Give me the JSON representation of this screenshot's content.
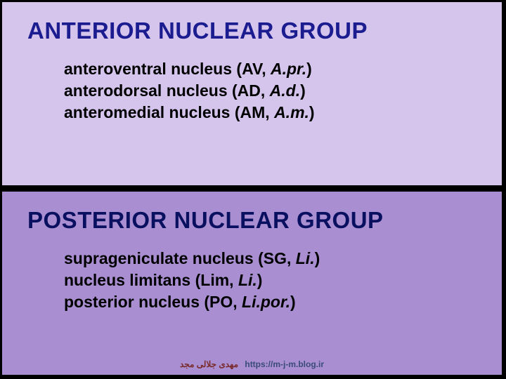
{
  "colors": {
    "top_bg": "#d5c5ed",
    "bottom_bg": "#a98fd1",
    "heading_top": "#1a1c90",
    "heading_bottom": "#0a1060",
    "text": "#000000",
    "footer_name": "#7a2a2a",
    "footer_url": "#3a4a78"
  },
  "top": {
    "heading": "ANTERIOR NUCLEAR GROUP",
    "items": [
      {
        "name": "anteroventral nucleus (AV, ",
        "abbr": "A.pr.",
        "close": ")"
      },
      {
        "name": "anterodorsal nucleus (AD, ",
        "abbr": "A.d.",
        "close": ")"
      },
      {
        "name": "anteromedial nucleus (AM, ",
        "abbr": "A.m.",
        "close": ")"
      }
    ]
  },
  "bottom": {
    "heading": "POSTERIOR NUCLEAR GROUP",
    "items": [
      {
        "name": "suprageniculate nucleus (SG, ",
        "abbr": "Li.",
        "close": ")"
      },
      {
        "name": "nucleus limitans (Lim, ",
        "abbr": "Li.",
        "close": ")"
      },
      {
        "name": "posterior nucleus (PO, ",
        "abbr": "Li.por.",
        "close": ")"
      }
    ]
  },
  "footer": {
    "name": "مهدی جلالی مجد",
    "url": "https://m-j-m.blog.ir"
  }
}
